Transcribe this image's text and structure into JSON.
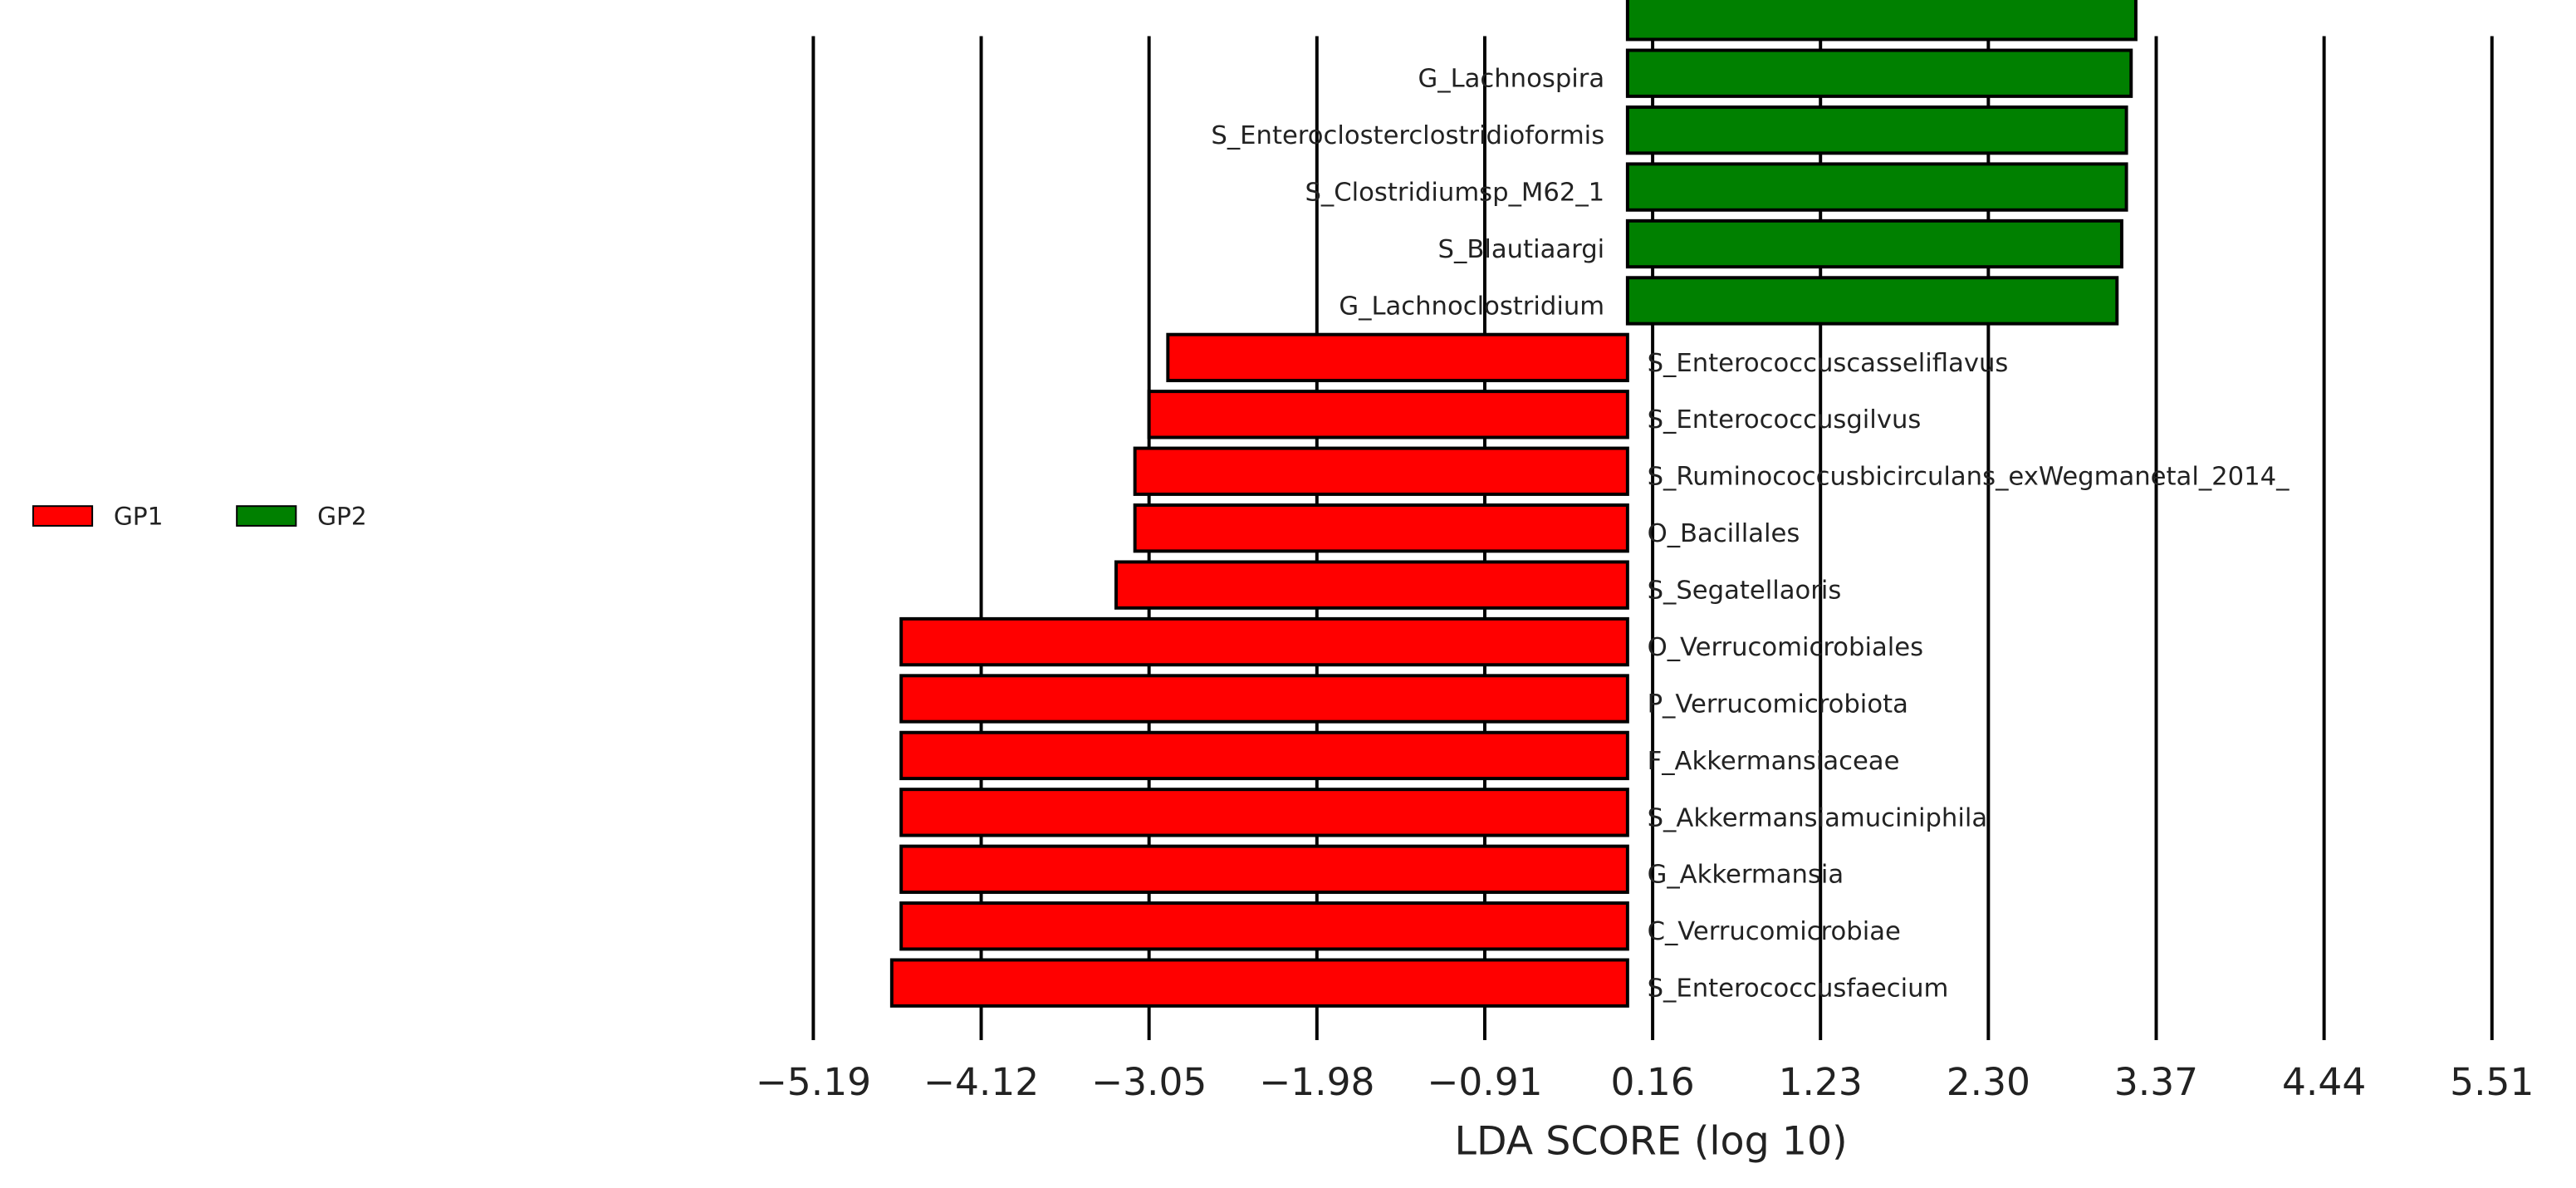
{
  "chart_data": {
    "type": "bar",
    "orientation": "horizontal",
    "x_label": "LDA SCORE (log 10)",
    "categories": [
      null,
      "G_Lachnospira",
      "S_Enteroclosterclostridioformis",
      "S_Clostridiumsp_M62_1",
      "S_Blautiaargi",
      "G_Lachnoclostridium",
      "S_Enterococcuscasseliflavus",
      "S_Enterococcusgilvus",
      "S_Ruminococcusbicirculans_exWegmanetal_2014_",
      "O_Bacillales",
      "S_Segatellaoris",
      "O_Verrucomicrobiales",
      "P_Verrucomicrobiota",
      "F_Akkermansiaceae",
      "S_Akkermansiamuciniphila",
      "G_Akkermansia",
      "C_Verrucomicrobiae",
      "S_Enterococcusfaecium"
    ],
    "series": [
      {
        "name": "GP1",
        "color": "#ff0000",
        "values": [
          null,
          null,
          null,
          null,
          null,
          null,
          -2.93,
          -3.05,
          -3.14,
          -3.14,
          -3.26,
          -4.63,
          -4.63,
          -4.63,
          -4.63,
          -4.63,
          -4.63,
          -4.69
        ]
      },
      {
        "name": "GP2",
        "color": "#008000",
        "values": [
          3.24,
          3.21,
          3.18,
          3.18,
          3.15,
          3.12,
          null,
          null,
          null,
          null,
          null,
          null,
          null,
          null,
          null,
          null,
          null,
          null
        ]
      }
    ],
    "xlim": [
      -5.19,
      5.51
    ],
    "xticks": [
      {
        "value": -5.19,
        "label": "−5.19"
      },
      {
        "value": -4.12,
        "label": "−4.12"
      },
      {
        "value": -3.05,
        "label": "−3.05"
      },
      {
        "value": -1.98,
        "label": "−1.98"
      },
      {
        "value": -0.91,
        "label": "−0.91"
      },
      0.16,
      1.23,
      {
        "value": 2.3,
        "label": "2.30"
      },
      3.37,
      4.44,
      5.51
    ],
    "grid": true,
    "legend": "left"
  }
}
